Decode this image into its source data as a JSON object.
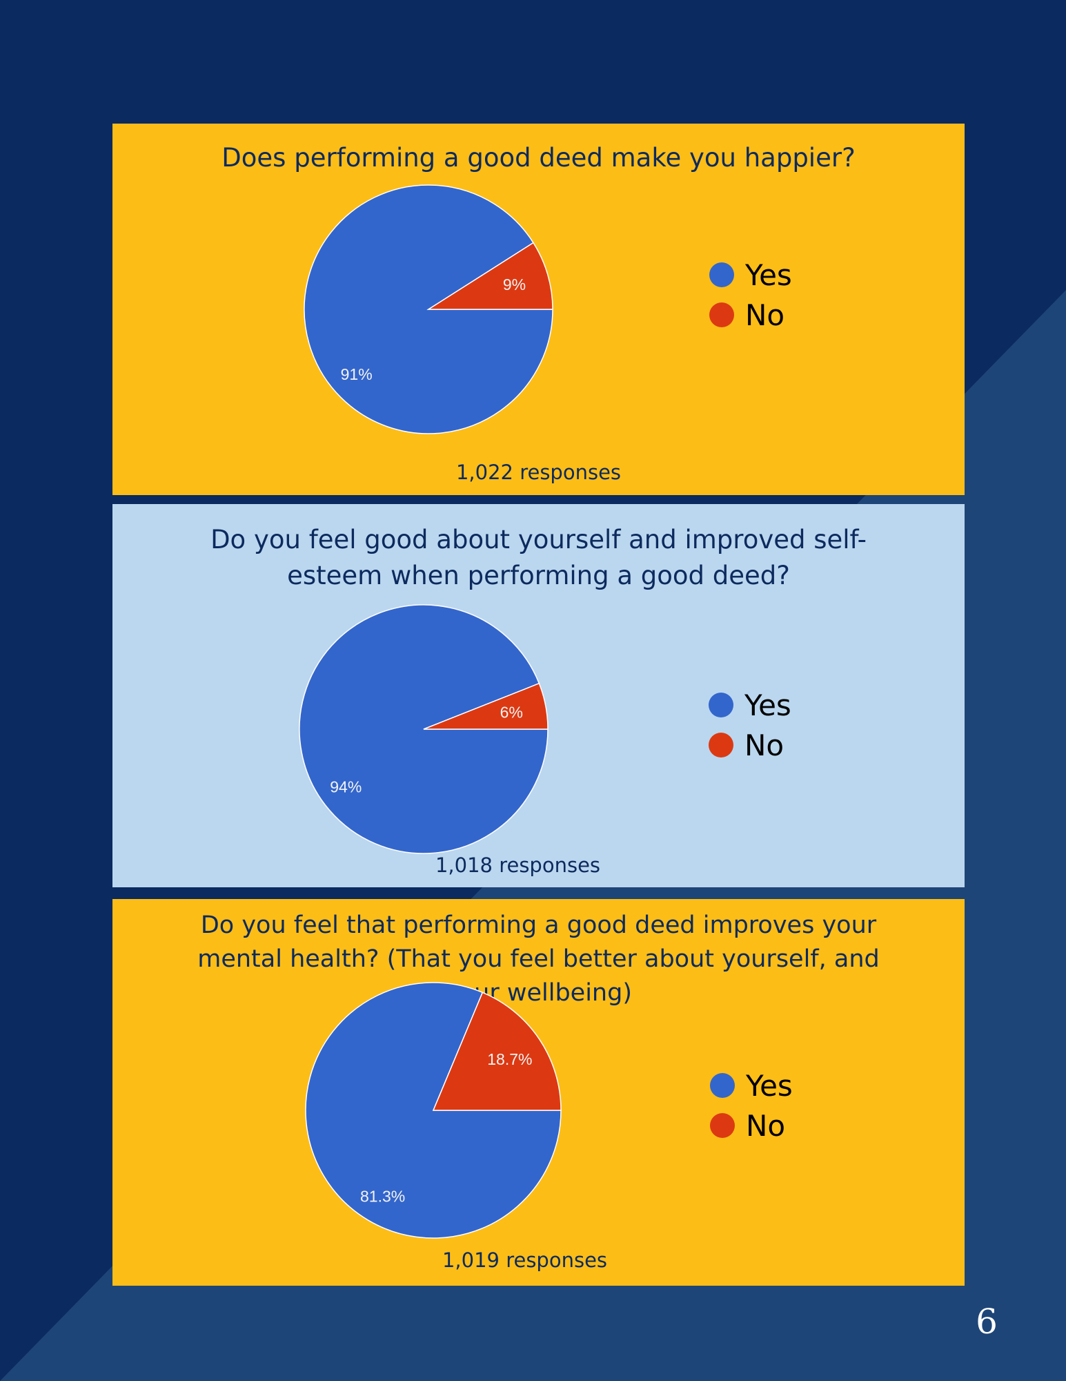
{
  "colors": {
    "background": "#0a2a60",
    "background_accent": "#1e4577",
    "panel_gold": "#fdbd17",
    "panel_light_blue": "#bbd7ef",
    "yes": "#3366cc",
    "no": "#dc3912"
  },
  "legend": {
    "yes_label": "Yes",
    "no_label": "No"
  },
  "chart_data": [
    {
      "type": "pie",
      "title": "Does performing a good deed make you happier?",
      "labels": [
        "Yes",
        "No"
      ],
      "values": [
        91,
        9
      ],
      "value_labels": [
        "91%",
        "9%"
      ],
      "responses": "1,022 responses",
      "legend_position": "right"
    },
    {
      "type": "pie",
      "title": "Do you feel good about yourself and improved self-esteem when performing a good deed?",
      "labels": [
        "Yes",
        "No"
      ],
      "values": [
        94,
        6
      ],
      "value_labels": [
        "94%",
        "6%"
      ],
      "responses": "1,018 responses",
      "legend_position": "right"
    },
    {
      "type": "pie",
      "title": "Do you feel that performing a good deed improves your mental health? (That you feel better about yourself, and your wellbeing)",
      "labels": [
        "Yes",
        "No"
      ],
      "values": [
        81.3,
        18.7
      ],
      "value_labels": [
        "81.3%",
        "18.7%"
      ],
      "responses": "1,019 responses",
      "legend_position": "right"
    }
  ],
  "page_number": "6"
}
